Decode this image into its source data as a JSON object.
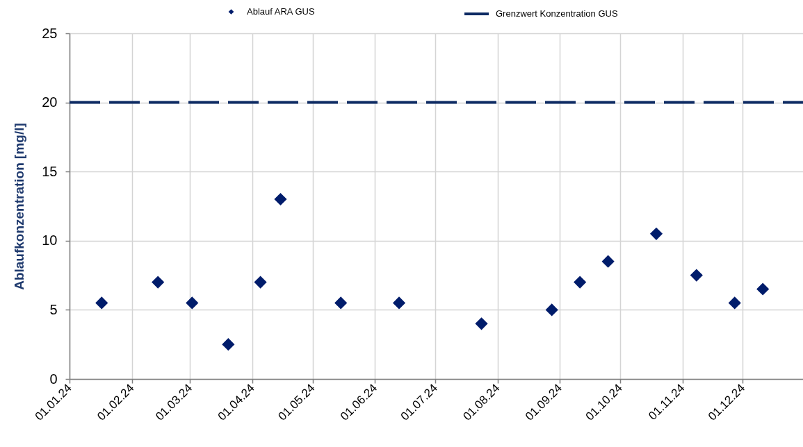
{
  "chart_data": {
    "type": "scatter",
    "ylabel": "Ablaufkonzentration [mg/l]",
    "xlim": [
      "2024-01-01",
      "2024-12-31"
    ],
    "xticks": [
      {
        "value": "2024-01-01",
        "label": "01.01.24"
      },
      {
        "value": "2024-02-01",
        "label": "01.02.24"
      },
      {
        "value": "2024-03-01",
        "label": "01.03.24"
      },
      {
        "value": "2024-04-01",
        "label": "01.04.24"
      },
      {
        "value": "2024-05-01",
        "label": "01.05.24"
      },
      {
        "value": "2024-06-01",
        "label": "01.06.24"
      },
      {
        "value": "2024-07-01",
        "label": "01.07.24"
      },
      {
        "value": "2024-08-01",
        "label": "01.08.24"
      },
      {
        "value": "2024-09-01",
        "label": "01.09.24"
      },
      {
        "value": "2024-10-01",
        "label": "01.10.24"
      },
      {
        "value": "2024-11-01",
        "label": "01.11.24"
      },
      {
        "value": "2024-12-01",
        "label": "01.12.24"
      }
    ],
    "ylim": [
      0,
      25
    ],
    "yticks": [
      0,
      5,
      10,
      15,
      20,
      25
    ],
    "grid": true,
    "legend": "top",
    "marker": "diamond",
    "series": [
      {
        "name": "Ablauf ARA GUS",
        "type": "scatter",
        "color": "#001c6b",
        "x": [
          "2024-01-17",
          "2024-02-14",
          "2024-03-02",
          "2024-03-20",
          "2024-04-05",
          "2024-04-15",
          "2024-05-15",
          "2024-06-13",
          "2024-07-24",
          "2024-08-28",
          "2024-09-11",
          "2024-09-25",
          "2024-10-19",
          "2024-11-08",
          "2024-11-27",
          "2024-12-11"
        ],
        "values": [
          5.5,
          7,
          5.5,
          2.5,
          7,
          13,
          5.5,
          5.5,
          4,
          5,
          7,
          8.5,
          10.5,
          7.5,
          5.5,
          6.5
        ]
      },
      {
        "name": "Grenzwert Konzentration GUS",
        "type": "line",
        "line_style": "dashed",
        "marker": "none",
        "color": "#0d2a63",
        "x": [
          "2024-01-01",
          "2024-12-31"
        ],
        "values": [
          20,
          20
        ]
      }
    ]
  }
}
